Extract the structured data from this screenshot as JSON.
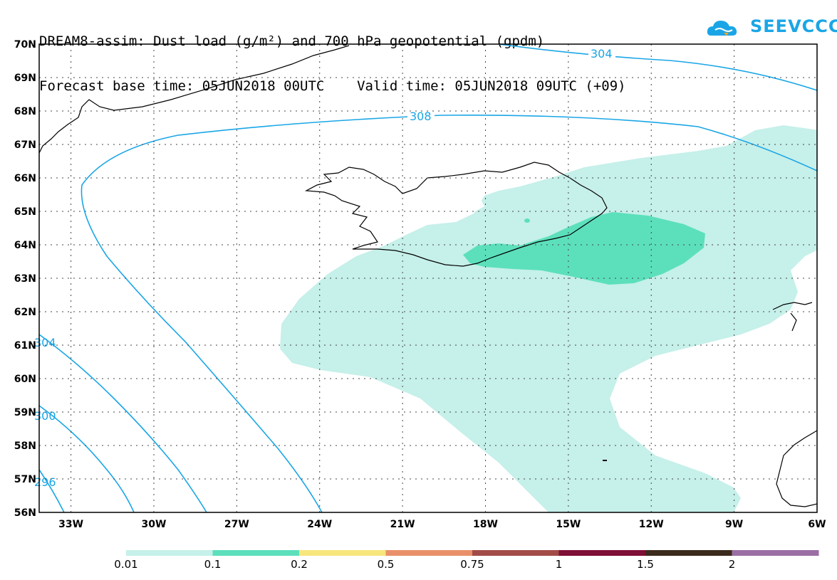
{
  "title": {
    "line1": "DREAM8-assim: Dust load (g/m²) and 700 hPa geopotential (gpdm)",
    "line2": "Forecast base time: 05JUN2018 00UTC    Valid time: 05JUN2018 09UTC (+09)"
  },
  "logo": {
    "text": "SEEVCCC",
    "icon": "cloud-logo-icon",
    "color": "#1aa6e6"
  },
  "map": {
    "lat_labels": [
      "70N",
      "69N",
      "68N",
      "67N",
      "66N",
      "65N",
      "64N",
      "63N",
      "62N",
      "61N",
      "60N",
      "59N",
      "58N",
      "57N",
      "56N"
    ],
    "lon_labels": [
      "33W",
      "30W",
      "27W",
      "24W",
      "21W",
      "18W",
      "15W",
      "12W",
      "9W",
      "6W"
    ],
    "contour_labels": [
      "304",
      "308",
      "304",
      "300",
      "296"
    ],
    "contour_color": "#1aa6e6",
    "fill_colors": {
      "low": "#c6f0ea",
      "mid": "#5ce0bc"
    }
  },
  "colorbar": {
    "labels": [
      "0.01",
      "0.1",
      "0.2",
      "0.5",
      "0.75",
      "1",
      "1.5",
      "2"
    ],
    "colors": [
      "#c6f0ea",
      "#5ce0bc",
      "#f7e67c",
      "#e9906a",
      "#a24c48",
      "#7e0f36",
      "#3b2b1c",
      "#9b6fa4"
    ]
  }
}
